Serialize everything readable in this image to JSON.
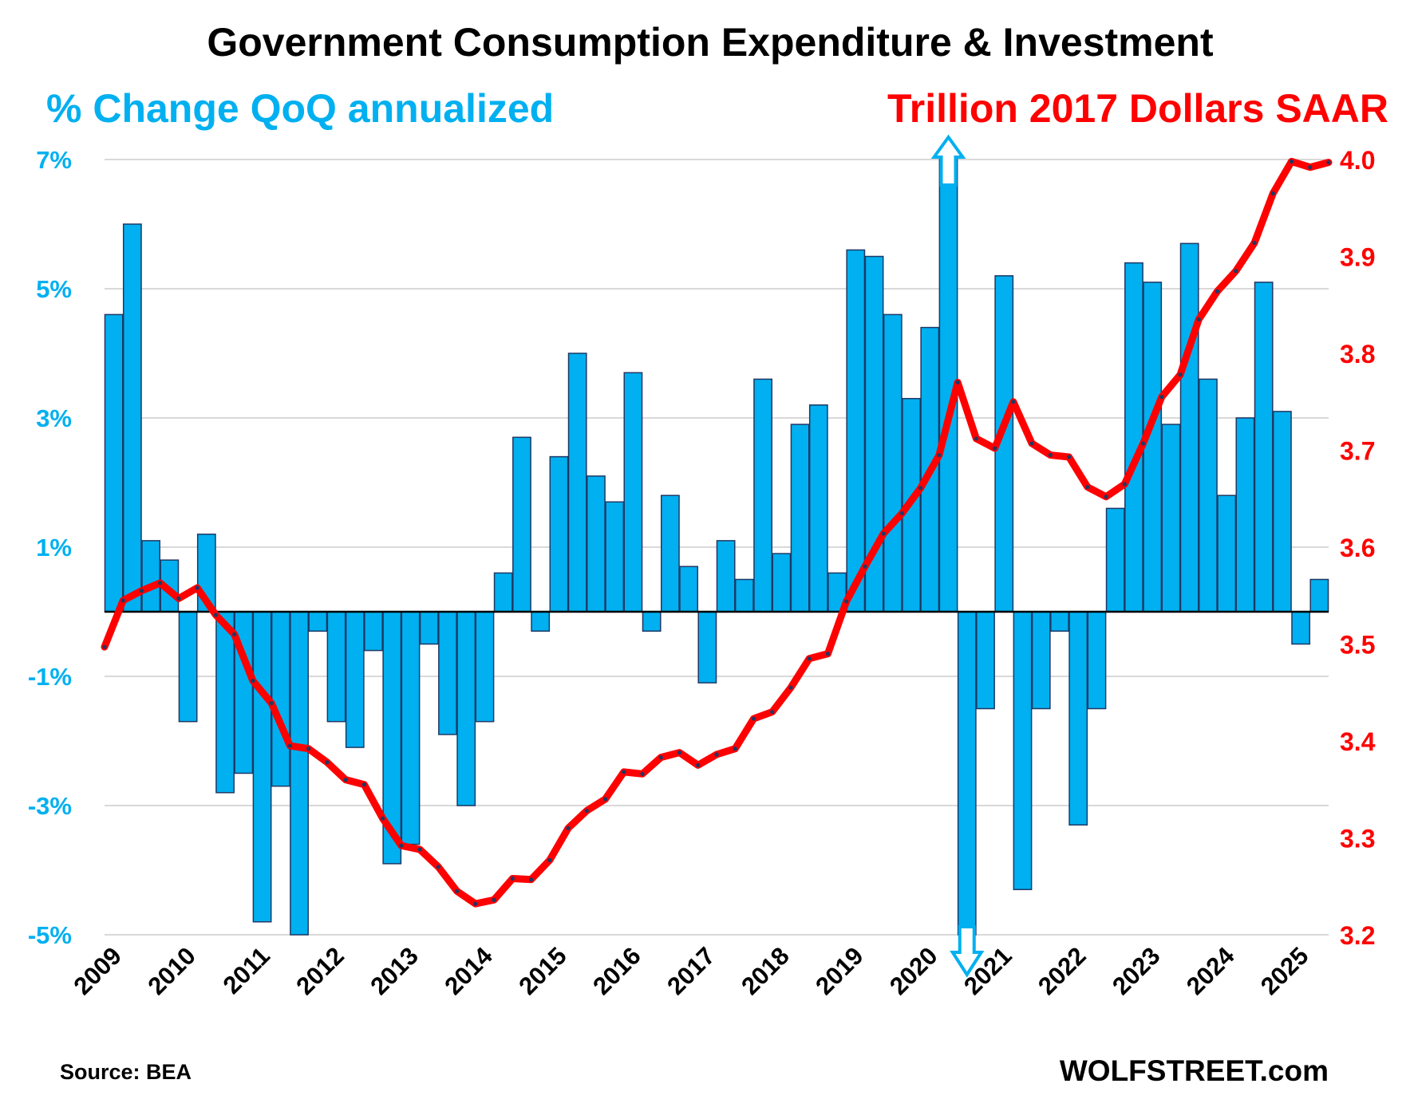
{
  "title": "Government Consumption Expenditure & Investment",
  "subtitle_left": "% Change QoQ annualized",
  "subtitle_right": "Trillion 2017 Dollars SAAR",
  "source": "Source: BEA",
  "brand": "WOLFSTREET.com",
  "colors": {
    "bar_fill": "#00b0f0",
    "bar_stroke": "#1f3864",
    "left_axis": "#00b0f0",
    "line": "#ff0000",
    "line_dots": "#1f3864",
    "arrow": "#00b0f0",
    "gridline": "#d9d9d9"
  },
  "chart_data": {
    "type": "bar+line",
    "title": "Government Consumption Expenditure & Investment",
    "x_labels": [
      "2009",
      "2010",
      "2011",
      "2012",
      "2013",
      "2014",
      "2015",
      "2016",
      "2017",
      "2018",
      "2019",
      "2020",
      "2021",
      "2022",
      "2023",
      "2024",
      "2025"
    ],
    "left_axis": {
      "label": "% Change QoQ annualized",
      "ticks": [
        7,
        5,
        3,
        1,
        -1,
        -3,
        -5
      ],
      "tick_labels": [
        "7%",
        "5%",
        "3%",
        "1%",
        "-1%",
        "-3%",
        "-5%"
      ],
      "range": [
        -5,
        7
      ]
    },
    "right_axis": {
      "label": "Trillion 2017 Dollars SAAR",
      "ticks": [
        4.0,
        3.9,
        3.8,
        3.7,
        3.6,
        3.5,
        3.4,
        3.3,
        3.2
      ],
      "tick_labels": [
        "4.0",
        "3.9",
        "3.8",
        "3.7",
        "3.6",
        "3.5",
        "3.4",
        "3.3",
        "3.2"
      ],
      "range": [
        3.2,
        4.0
      ]
    },
    "grid": true,
    "series": [
      {
        "name": "% Change QoQ annualized",
        "type": "bar",
        "axis": "left",
        "values": [
          4.6,
          6.0,
          1.1,
          0.8,
          -1.7,
          1.2,
          -2.8,
          -2.5,
          -4.8,
          -2.7,
          -5.0,
          -0.3,
          -1.7,
          -2.1,
          -0.6,
          -3.9,
          -3.6,
          -0.5,
          -1.9,
          -3.0,
          -1.7,
          0.6,
          2.7,
          -0.3,
          2.4,
          4.0,
          2.1,
          1.7,
          3.7,
          -0.3,
          1.8,
          0.7,
          -1.1,
          1.1,
          0.5,
          3.6,
          0.9,
          2.9,
          3.2,
          0.6,
          5.6,
          5.5,
          4.6,
          3.3,
          4.4,
          7.0,
          -5.0,
          -1.5,
          5.2,
          -4.3,
          -1.5,
          -0.3,
          -3.3,
          -1.5,
          1.6,
          5.4,
          5.1,
          2.9,
          5.7,
          3.6,
          1.8,
          3.0,
          5.1,
          3.1,
          -0.5,
          0.5
        ],
        "truncated": {
          "45": "above 7% (arrow up)",
          "46": "below -5% (arrow down)"
        }
      },
      {
        "name": "Trillion 2017 Dollars SAAR",
        "type": "line",
        "axis": "right",
        "values": [
          3.497,
          3.545,
          3.555,
          3.563,
          3.547,
          3.558,
          3.53,
          3.51,
          3.462,
          3.439,
          3.395,
          3.392,
          3.378,
          3.36,
          3.355,
          3.32,
          3.292,
          3.288,
          3.27,
          3.245,
          3.232,
          3.236,
          3.258,
          3.257,
          3.277,
          3.31,
          3.328,
          3.34,
          3.368,
          3.366,
          3.383,
          3.388,
          3.375,
          3.386,
          3.392,
          3.423,
          3.43,
          3.455,
          3.485,
          3.49,
          3.544,
          3.58,
          3.614,
          3.635,
          3.661,
          3.695,
          3.77,
          3.712,
          3.702,
          3.75,
          3.707,
          3.695,
          3.693,
          3.662,
          3.652,
          3.665,
          3.707,
          3.755,
          3.778,
          3.835,
          3.864,
          3.885,
          3.914,
          3.965,
          3.998,
          3.992,
          3.997
        ]
      }
    ]
  }
}
